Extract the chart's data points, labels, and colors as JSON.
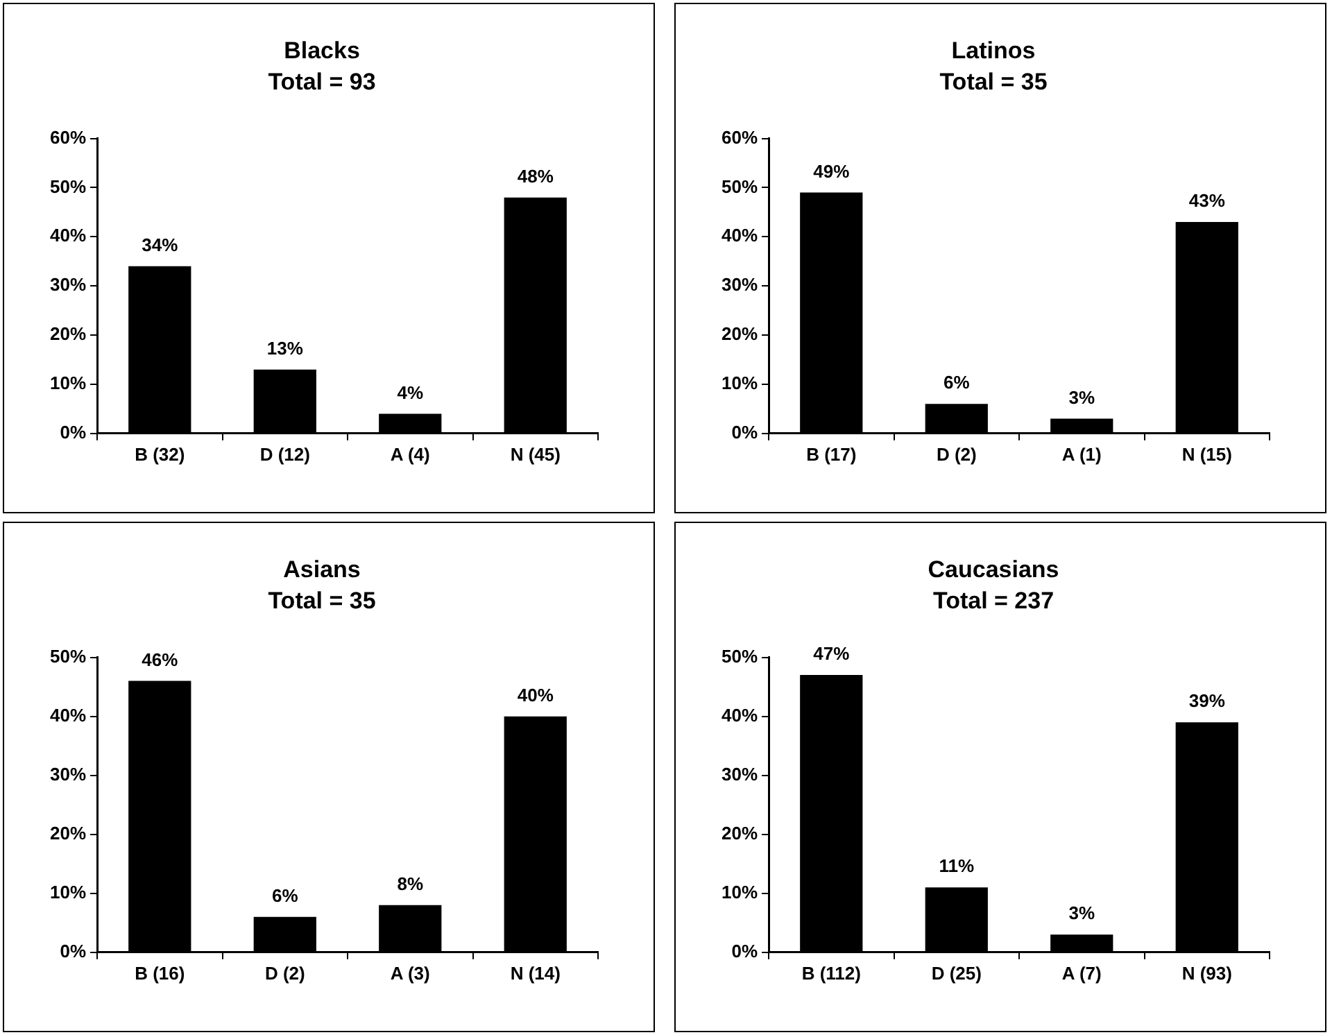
{
  "chart_data": [
    {
      "type": "bar",
      "title": "Blacks",
      "subtitle": "Total = 93",
      "categories": [
        "B (32)",
        "D (12)",
        "A (4)",
        "N (45)"
      ],
      "values": [
        34,
        13,
        4,
        48
      ],
      "value_labels": [
        "34%",
        "13%",
        "4%",
        "48%"
      ],
      "color": "#000000",
      "ylim": [
        0,
        60
      ],
      "yticks": [
        {
          "value": 0,
          "label": "0%"
        },
        {
          "value": 10,
          "label": "10%"
        },
        {
          "value": 20,
          "label": "20%"
        },
        {
          "value": 30,
          "label": "30%"
        },
        {
          "value": 40,
          "label": "40%"
        },
        {
          "value": 50,
          "label": "50%"
        },
        {
          "value": 60,
          "label": "60%"
        }
      ],
      "grid": false,
      "legend": false
    },
    {
      "type": "bar",
      "title": "Latinos",
      "subtitle": "Total = 35",
      "categories": [
        "B (17)",
        "D (2)",
        "A (1)",
        "N (15)"
      ],
      "values": [
        49,
        6,
        3,
        43
      ],
      "value_labels": [
        "49%",
        "6%",
        "3%",
        "43%"
      ],
      "color": "#000000",
      "ylim": [
        0,
        60
      ],
      "yticks": [
        {
          "value": 0,
          "label": "0%"
        },
        {
          "value": 10,
          "label": "10%"
        },
        {
          "value": 20,
          "label": "20%"
        },
        {
          "value": 30,
          "label": "30%"
        },
        {
          "value": 40,
          "label": "40%"
        },
        {
          "value": 50,
          "label": "50%"
        },
        {
          "value": 60,
          "label": "60%"
        }
      ],
      "grid": false,
      "legend": false
    },
    {
      "type": "bar",
      "title": "Asians",
      "subtitle": "Total = 35",
      "categories": [
        "B (16)",
        "D (2)",
        "A (3)",
        "N (14)"
      ],
      "values": [
        46,
        6,
        8,
        40
      ],
      "value_labels": [
        "46%",
        "6%",
        "8%",
        "40%"
      ],
      "color": "#000000",
      "ylim": [
        0,
        50
      ],
      "yticks": [
        {
          "value": 0,
          "label": "0%"
        },
        {
          "value": 10,
          "label": "10%"
        },
        {
          "value": 20,
          "label": "20%"
        },
        {
          "value": 30,
          "label": "30%"
        },
        {
          "value": 40,
          "label": "40%"
        },
        {
          "value": 50,
          "label": "50%"
        }
      ],
      "grid": false,
      "legend": false
    },
    {
      "type": "bar",
      "title": "Caucasians",
      "subtitle": "Total = 237",
      "categories": [
        "B (112)",
        "D (25)",
        "A (7)",
        "N (93)"
      ],
      "values": [
        47,
        11,
        3,
        39
      ],
      "value_labels": [
        "47%",
        "11%",
        "3%",
        "39%"
      ],
      "color": "#000000",
      "ylim": [
        0,
        50
      ],
      "yticks": [
        {
          "value": 0,
          "label": "0%"
        },
        {
          "value": 10,
          "label": "10%"
        },
        {
          "value": 20,
          "label": "20%"
        },
        {
          "value": 30,
          "label": "30%"
        },
        {
          "value": 40,
          "label": "40%"
        },
        {
          "value": 50,
          "label": "50%"
        }
      ],
      "grid": false,
      "legend": false
    }
  ]
}
